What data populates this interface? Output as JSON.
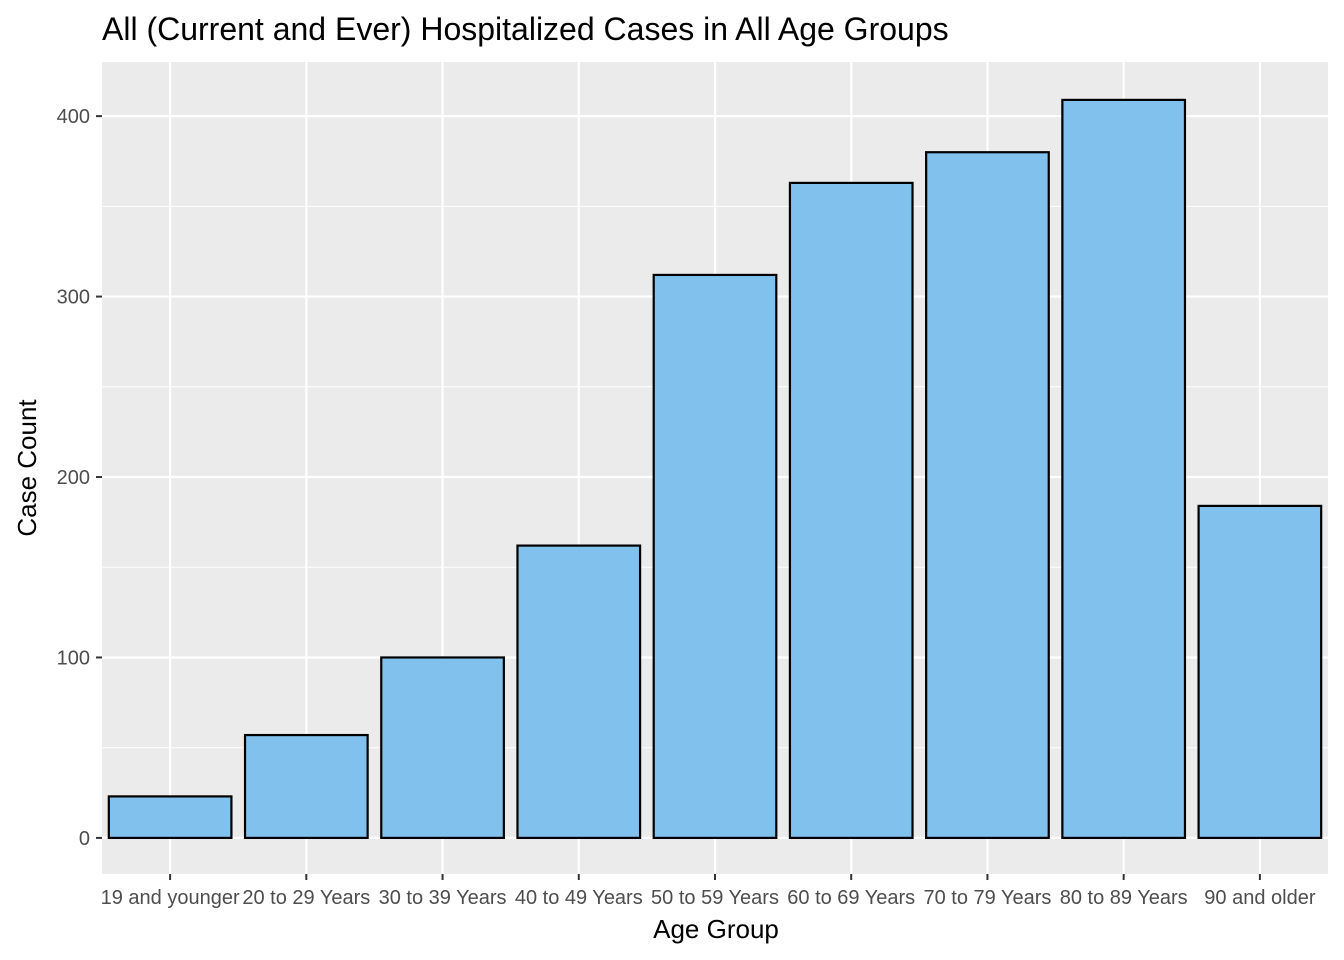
{
  "chart_data": {
    "type": "bar",
    "title": "All (Current and Ever) Hospitalized Cases in All Age Groups",
    "xlabel": "Age Group",
    "ylabel": "Case Count",
    "categories": [
      "19 and younger",
      "20 to 29 Years",
      "30 to 39 Years",
      "40 to 49 Years",
      "50 to 59 Years",
      "60 to 69 Years",
      "70 to 79 Years",
      "80 to 89 Years",
      "90 and older"
    ],
    "values": [
      23,
      57,
      100,
      162,
      312,
      363,
      380,
      409,
      184
    ],
    "ylim": [
      -20,
      430
    ],
    "yticks": [
      0,
      100,
      200,
      300,
      400
    ],
    "grid": true,
    "legend": "none",
    "colors": {
      "panel": "#ebebeb",
      "grid": "#ffffff",
      "bar_fill": "#80c1ee",
      "bar_stroke": "#000000",
      "tick_text": "#4d4d4d",
      "tick_mark": "#333333"
    }
  }
}
